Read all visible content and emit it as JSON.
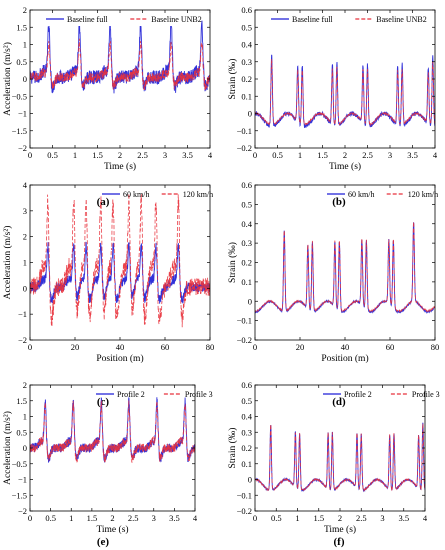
{
  "colors": {
    "series_a": "#1f1fd6",
    "series_b": "#e8323c",
    "axis": "#000000"
  },
  "chart_data": [
    {
      "panel": "a",
      "caption": "(a)",
      "type": "line",
      "xlabel": "Time (s)",
      "ylabel": "Acceleration (m/s²)",
      "xlim": [
        0,
        4
      ],
      "ylim": [
        -2,
        2
      ],
      "xticks": [
        0,
        0.5,
        1,
        1.5,
        2,
        2.5,
        3,
        3.5,
        4
      ],
      "yticks": [
        -2,
        -1.5,
        -1,
        -0.5,
        0,
        0.5,
        1,
        1.5,
        2
      ],
      "legend_position": "top",
      "legend_style": "boxed",
      "signal": "accel",
      "peak_x": [
        0.42,
        1.1,
        1.78,
        2.46,
        3.14,
        3.82
      ],
      "series": [
        {
          "name": "Baseline full",
          "style": "solid",
          "peak": 1.55,
          "trough": -0.3,
          "base": 0.05,
          "noise": 0.25
        },
        {
          "name": "Baseline UNB2",
          "style": "dashed",
          "peak": 1.0,
          "trough": -0.25,
          "base": 0.05,
          "noise": 0.18
        }
      ]
    },
    {
      "panel": "b",
      "caption": "(b)",
      "type": "line",
      "xlabel": "Time (s)",
      "ylabel": "Strain (‰)",
      "xlim": [
        0,
        4
      ],
      "ylim": [
        -0.2,
        0.6
      ],
      "xticks": [
        0,
        0.5,
        1,
        1.5,
        2,
        2.5,
        3,
        3.5,
        4
      ],
      "yticks": [
        -0.2,
        -0.1,
        0,
        0.1,
        0.2,
        0.3,
        0.4,
        0.5,
        0.6
      ],
      "legend_position": "top",
      "legend_style": "boxed",
      "signal": "strain",
      "peak_x": [
        0.37,
        0.95,
        1.05,
        1.72,
        1.82,
        2.4,
        2.5,
        3.17,
        3.27,
        3.85,
        3.95
      ],
      "peak_heights": [
        0.42,
        0.33,
        0.35,
        0.35,
        0.37,
        0.34,
        0.36,
        0.34,
        0.36,
        0.33,
        0.41
      ],
      "series": [
        {
          "name": "Baseline full",
          "style": "solid",
          "trough": -0.075,
          "noise": 0.012
        },
        {
          "name": "Baseline UNB2",
          "style": "dashed",
          "trough": -0.065,
          "noise": 0.006,
          "scale": 0.9
        }
      ]
    },
    {
      "panel": "c",
      "caption": "(c)",
      "type": "line",
      "xlabel": "Position (m)",
      "ylabel": "Acceleration (m/s²)",
      "xlim": [
        0,
        80
      ],
      "ylim": [
        -2,
        4
      ],
      "xticks": [
        0,
        20,
        40,
        60,
        80
      ],
      "yticks": [
        -2,
        -1,
        0,
        1,
        2,
        3,
        4
      ],
      "legend_position": "top-right",
      "legend_style": "plain",
      "signal": "accel",
      "peak_x": [
        8,
        19.5,
        25,
        31.5,
        37,
        44,
        49.5,
        56,
        66
      ],
      "series": [
        {
          "name": "60 km/h",
          "style": "solid",
          "peak": 1.6,
          "trough": -0.5,
          "base": 0.05,
          "noise": 0.25
        },
        {
          "name": "120 km/h",
          "style": "dashed",
          "peak": 3.4,
          "trough": -1.3,
          "base": 0.05,
          "noise": 0.45
        }
      ]
    },
    {
      "panel": "d",
      "caption": "(d)",
      "type": "line",
      "xlabel": "Position (m)",
      "ylabel": "Strain (‰)",
      "xlim": [
        0,
        80
      ],
      "ylim": [
        -0.2,
        0.6
      ],
      "xticks": [
        0,
        20,
        40,
        60,
        80
      ],
      "yticks": [
        -0.2,
        -0.1,
        0,
        0.1,
        0.2,
        0.3,
        0.4,
        0.5,
        0.6
      ],
      "legend_position": "top-right",
      "legend_style": "plain",
      "signal": "strain",
      "peak_x": [
        13,
        23.5,
        25.5,
        35.5,
        37.5,
        47.5,
        49.5,
        59.5,
        61.5,
        70.5
      ],
      "peak_heights": [
        0.42,
        0.33,
        0.36,
        0.34,
        0.36,
        0.34,
        0.36,
        0.33,
        0.35,
        0.41
      ],
      "series": [
        {
          "name": "60 km/h",
          "style": "solid",
          "trough": -0.055,
          "noise": 0.004
        },
        {
          "name": "120 km/h",
          "style": "dashed",
          "trough": -0.05,
          "noise": 0.004,
          "scale": 1.0
        }
      ]
    },
    {
      "panel": "e",
      "caption": "(e)",
      "type": "line",
      "xlabel": "Time (s)",
      "ylabel": "Acceleration (m/s²)",
      "xlim": [
        0,
        4
      ],
      "ylim": [
        -2,
        2
      ],
      "xticks": [
        0,
        0.5,
        1,
        1.5,
        2,
        2.5,
        3,
        3.5,
        4
      ],
      "yticks": [
        -2,
        -1.5,
        -1,
        -0.5,
        0,
        0.5,
        1,
        1.5,
        2
      ],
      "legend_position": "top-right",
      "legend_style": "plain",
      "signal": "accel",
      "peak_x": [
        0.37,
        1.05,
        1.73,
        2.4,
        3.08,
        3.76
      ],
      "series": [
        {
          "name": "Profile 2",
          "style": "solid",
          "peak": 1.5,
          "trough": -0.35,
          "base": 0.0,
          "noise": 0.18
        },
        {
          "name": "Profile 3",
          "style": "dashed",
          "peak": 1.4,
          "trough": -0.35,
          "base": 0.0,
          "noise": 0.18
        }
      ]
    },
    {
      "panel": "f",
      "caption": "(f)",
      "type": "line",
      "xlabel": "Time (s)",
      "ylabel": "Strain (‰)",
      "xlim": [
        0,
        4
      ],
      "ylim": [
        -0.2,
        0.6
      ],
      "xticks": [
        0,
        0.5,
        1,
        1.5,
        2,
        2.5,
        3,
        3.5,
        4
      ],
      "yticks": [
        -0.2,
        -0.1,
        0,
        0.1,
        0.2,
        0.3,
        0.4,
        0.5,
        0.6
      ],
      "legend_position": "top-right",
      "legend_style": "plain",
      "signal": "strain",
      "peak_x": [
        0.37,
        0.95,
        1.05,
        1.72,
        1.82,
        2.4,
        2.5,
        3.17,
        3.27,
        3.85,
        3.95
      ],
      "peak_heights": [
        0.42,
        0.35,
        0.36,
        0.36,
        0.37,
        0.35,
        0.36,
        0.35,
        0.36,
        0.34,
        0.43
      ],
      "series": [
        {
          "name": "Profile 2",
          "style": "solid",
          "trough": -0.07,
          "noise": 0.006
        },
        {
          "name": "Profile 3",
          "style": "dashed",
          "trough": -0.07,
          "noise": 0.006,
          "scale": 1.0
        }
      ]
    }
  ]
}
